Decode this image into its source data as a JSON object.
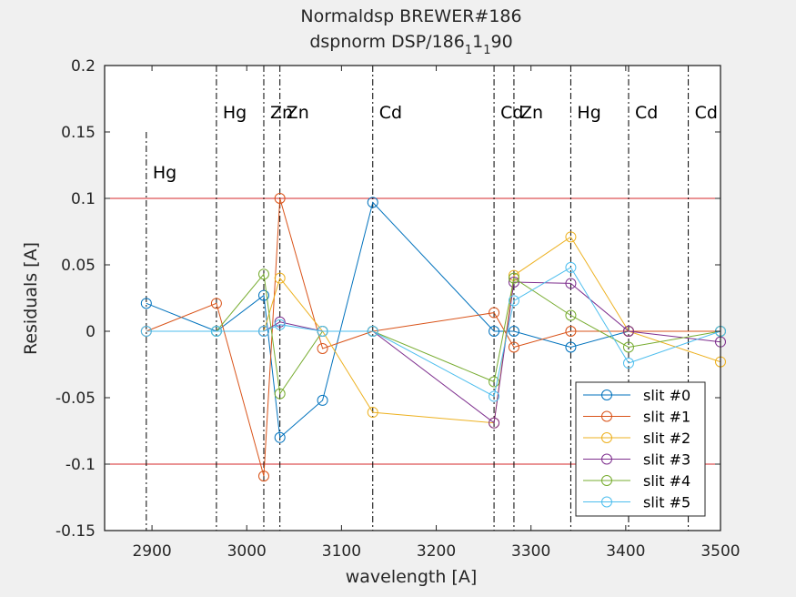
{
  "chart_data": {
    "type": "line",
    "title": "Normaldsp BREWER#186",
    "subtitle": {
      "before": "dspnorm DSP/186",
      "sub1": "1",
      "mid": "1",
      "sub2": "1",
      "after": "90"
    },
    "xlabel": "wavelength [A]",
    "ylabel": "Residuals [A]",
    "xlim": [
      2850,
      3500
    ],
    "ylim": [
      -0.15,
      0.2
    ],
    "xticks": [
      2900,
      3000,
      3100,
      3200,
      3300,
      3400,
      3500
    ],
    "yticks": [
      -0.15,
      -0.1,
      -0.05,
      0,
      0.05,
      0.1,
      0.15,
      0.2
    ],
    "ytick_labels": [
      "-0.15",
      "-0.1",
      "-0.05",
      "0",
      "0.05",
      "0.1",
      "0.15",
      "0.2"
    ],
    "grid": false,
    "legend_position": "bottom-right",
    "reference_lines": [
      {
        "y": 0.1,
        "color": "#d62728"
      },
      {
        "y": -0.1,
        "color": "#d62728"
      }
    ],
    "spectral_lines": [
      {
        "x": 2894,
        "label": "Hg",
        "label_y": 0.12,
        "line_top": 0.15
      },
      {
        "x": 2968,
        "label": "Hg",
        "label_y": 0.165,
        "line_top": 0.2
      },
      {
        "x": 3018,
        "label": "Zn",
        "label_y": 0.165,
        "line_top": 0.2
      },
      {
        "x": 3035,
        "label": "Zn",
        "label_y": 0.165,
        "line_top": 0.2
      },
      {
        "x": 3133,
        "label": "Cd",
        "label_y": 0.165,
        "line_top": 0.2
      },
      {
        "x": 3261,
        "label": "Cd",
        "label_y": 0.165,
        "line_top": 0.2
      },
      {
        "x": 3282,
        "label": "Zn",
        "label_y": 0.165,
        "line_top": 0.2
      },
      {
        "x": 3342,
        "label": "Hg",
        "label_y": 0.165,
        "line_top": 0.2
      },
      {
        "x": 3403,
        "label": "Cd",
        "label_y": 0.165,
        "line_top": 0.2
      },
      {
        "x": 3466,
        "label": "Cd",
        "label_y": 0.165,
        "line_top": 0.2
      }
    ],
    "series": [
      {
        "name": "slit #0",
        "color": "#0072bd",
        "x": [
          2894,
          2968,
          3018,
          3035,
          3080,
          3133,
          3261,
          3282,
          3342,
          3403
        ],
        "y": [
          0.021,
          0.0,
          0.027,
          -0.08,
          -0.052,
          0.097,
          0.0,
          0.0,
          -0.012,
          0.0
        ]
      },
      {
        "name": "slit #1",
        "color": "#d95319",
        "x": [
          2894,
          2968,
          3018,
          3035,
          3080,
          3133,
          3261,
          3282,
          3342,
          3403,
          3500
        ],
        "y": [
          0.0,
          0.021,
          -0.109,
          0.1,
          -0.013,
          0.0,
          0.014,
          -0.012,
          0.0,
          0.0,
          0.0
        ]
      },
      {
        "name": "slit #2",
        "color": "#edb120",
        "x": [
          3018,
          3035,
          3080,
          3133,
          3261,
          3282,
          3342,
          3403,
          3500
        ],
        "y": [
          0.0,
          0.04,
          0.0,
          -0.061,
          -0.069,
          0.042,
          0.071,
          0.0,
          -0.023
        ]
      },
      {
        "name": "slit #3",
        "color": "#7e2f8e",
        "x": [
          3018,
          3035,
          3080,
          3133,
          3261,
          3282,
          3342,
          3403,
          3500
        ],
        "y": [
          0.0,
          0.007,
          0.0,
          0.0,
          -0.069,
          0.037,
          0.036,
          0.0,
          -0.008
        ]
      },
      {
        "name": "slit #4",
        "color": "#77ac30",
        "x": [
          2968,
          3018,
          3035,
          3080,
          3133,
          3261,
          3282,
          3342,
          3403,
          3500
        ],
        "y": [
          0.0,
          0.043,
          -0.047,
          0.0,
          0.0,
          -0.038,
          0.04,
          0.012,
          -0.012,
          0.0
        ]
      },
      {
        "name": "slit #5",
        "color": "#4dbeee",
        "x": [
          2894,
          2968,
          3018,
          3035,
          3080,
          3133,
          3261,
          3282,
          3342,
          3403,
          3500
        ],
        "y": [
          0.0,
          0.0,
          0.0,
          0.005,
          0.0,
          0.0,
          -0.049,
          0.023,
          0.048,
          -0.024,
          0.0
        ]
      }
    ]
  }
}
